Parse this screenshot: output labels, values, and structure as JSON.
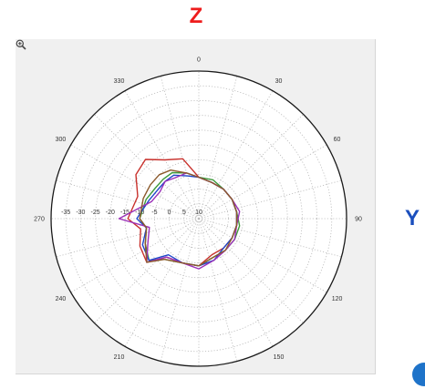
{
  "labels": {
    "z_axis": "Z",
    "y_axis": "Y"
  },
  "icons": {
    "zoom": "zoom-in-icon"
  },
  "colors": {
    "z_label": "#ee1c1c",
    "y_label": "#1b4fbd",
    "frame_bg": "#f0f0f0",
    "corner_dot": "#1e73c9"
  },
  "chart_data": {
    "type": "polar-line",
    "title": "",
    "angle_unit": "deg",
    "angle_zero": "top",
    "angle_direction": "clockwise",
    "angle_ticks": [
      0,
      30,
      60,
      90,
      120,
      150,
      180,
      210,
      240,
      270,
      300,
      330
    ],
    "radial_ticks": [
      10,
      5,
      0,
      -5,
      -10,
      -15,
      -20,
      -25,
      -30,
      -35
    ],
    "rlim": [
      10,
      -40
    ],
    "grid": true,
    "series": [
      {
        "color": "#c8312c",
        "points": [
          [
            0,
            -4
          ],
          [
            20,
            -3
          ],
          [
            40,
            -3
          ],
          [
            60,
            -3
          ],
          [
            80,
            -3
          ],
          [
            100,
            -3
          ],
          [
            120,
            -3
          ],
          [
            140,
            -3
          ],
          [
            160,
            -3
          ],
          [
            180,
            -6
          ],
          [
            200,
            -6
          ],
          [
            220,
            -7
          ],
          [
            230,
            -13
          ],
          [
            245,
            -12
          ],
          [
            260,
            -10
          ],
          [
            270,
            -14
          ],
          [
            290,
            -12
          ],
          [
            305,
            -16
          ],
          [
            318,
            -17
          ],
          [
            330,
            -13
          ],
          [
            345,
            -11
          ],
          [
            360,
            -4
          ]
        ]
      },
      {
        "color": "#3e9a3c",
        "points": [
          [
            0,
            -4
          ],
          [
            20,
            -4
          ],
          [
            40,
            -3
          ],
          [
            60,
            -3
          ],
          [
            80,
            -3
          ],
          [
            100,
            -4
          ],
          [
            120,
            -4
          ],
          [
            140,
            -4
          ],
          [
            160,
            -4
          ],
          [
            180,
            -6
          ],
          [
            200,
            -6
          ],
          [
            220,
            -8
          ],
          [
            230,
            -12
          ],
          [
            245,
            -10
          ],
          [
            260,
            -8
          ],
          [
            270,
            -10
          ],
          [
            290,
            -9
          ],
          [
            305,
            -8
          ],
          [
            318,
            -8
          ],
          [
            330,
            -8
          ],
          [
            345,
            -6
          ],
          [
            360,
            -4
          ]
        ]
      },
      {
        "color": "#1f47c9",
        "points": [
          [
            0,
            -4
          ],
          [
            20,
            -3
          ],
          [
            40,
            -3
          ],
          [
            60,
            -3
          ],
          [
            80,
            -3
          ],
          [
            100,
            -3
          ],
          [
            120,
            -3
          ],
          [
            140,
            -3
          ],
          [
            160,
            -5
          ],
          [
            180,
            -6
          ],
          [
            200,
            -6
          ],
          [
            220,
            -6
          ],
          [
            230,
            -12
          ],
          [
            245,
            -11
          ],
          [
            260,
            -8
          ],
          [
            270,
            -11
          ],
          [
            290,
            -8
          ],
          [
            305,
            -7
          ],
          [
            318,
            -7
          ],
          [
            330,
            -7
          ],
          [
            345,
            -5
          ],
          [
            360,
            -4
          ]
        ]
      },
      {
        "color": "#9b30b8",
        "points": [
          [
            0,
            -4
          ],
          [
            20,
            -3
          ],
          [
            40,
            -3
          ],
          [
            60,
            -3
          ],
          [
            80,
            -4
          ],
          [
            100,
            -3
          ],
          [
            120,
            -4
          ],
          [
            140,
            -4
          ],
          [
            160,
            -5
          ],
          [
            180,
            -7
          ],
          [
            200,
            -6
          ],
          [
            220,
            -7
          ],
          [
            230,
            -13
          ],
          [
            245,
            -9
          ],
          [
            260,
            -7
          ],
          [
            270,
            -17
          ],
          [
            290,
            -7
          ],
          [
            305,
            -6
          ],
          [
            318,
            -7
          ],
          [
            330,
            -6
          ],
          [
            345,
            -6
          ],
          [
            360,
            -4
          ]
        ]
      },
      {
        "color": "#8c5a2c",
        "points": [
          [
            0,
            -4
          ],
          [
            20,
            -3
          ],
          [
            40,
            -3
          ],
          [
            60,
            -3
          ],
          [
            80,
            -3
          ],
          [
            100,
            -3
          ],
          [
            120,
            -3
          ],
          [
            140,
            -4
          ],
          [
            160,
            -4
          ],
          [
            180,
            -6
          ],
          [
            200,
            -6
          ],
          [
            220,
            -8
          ],
          [
            230,
            -13
          ],
          [
            245,
            -10
          ],
          [
            260,
            -8
          ],
          [
            270,
            -10
          ],
          [
            290,
            -10
          ],
          [
            305,
            -10
          ],
          [
            318,
            -10
          ],
          [
            330,
            -9
          ],
          [
            345,
            -6
          ],
          [
            360,
            -4
          ]
        ]
      }
    ]
  }
}
